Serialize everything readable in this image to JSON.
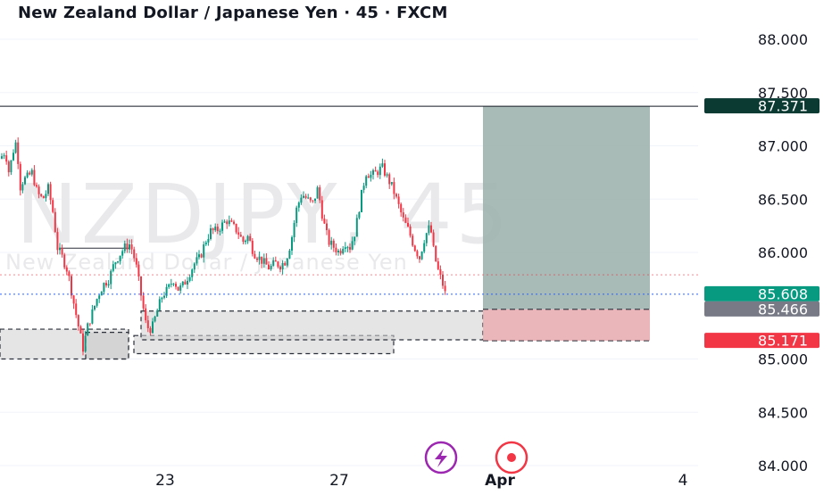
{
  "header": {
    "title": "New Zealand Dollar / Japanese Yen · 45 · FXCM"
  },
  "watermark": {
    "symbol": "NZDJPY, 45",
    "name": "New Zealand Dollar / Japanese Yen"
  },
  "colors": {
    "up": "#089981",
    "down": "#f23645",
    "target_zone": "#9fb4ae",
    "stop_zone": "#e8a9ad",
    "demand_zone": "#cfcfcf",
    "target_badge": "#0b3a33",
    "stop_badge": "#f23645",
    "last_badge": "#089981",
    "mid_badge": "#787b86"
  },
  "chart_data": {
    "type": "candlestick",
    "title": "New Zealand Dollar / Japanese Yen · 45 · FXCM",
    "ylim": [
      84.0,
      88.0
    ],
    "y_ticks": [
      "84.000",
      "84.500",
      "85.000",
      "86.000",
      "86.500",
      "87.000",
      "87.500",
      "88.000"
    ],
    "x_ticks": [
      "23",
      "27",
      "Apr",
      "4"
    ],
    "price_path": [
      [
        0,
        86.88
      ],
      [
        6,
        86.95
      ],
      [
        10,
        86.75
      ],
      [
        16,
        87.0
      ],
      [
        19,
        87.05
      ],
      [
        22,
        86.6
      ],
      [
        26,
        86.68
      ],
      [
        30,
        86.7
      ],
      [
        36,
        86.75
      ],
      [
        42,
        86.55
      ],
      [
        48,
        86.5
      ],
      [
        54,
        86.6
      ],
      [
        60,
        86.35
      ],
      [
        64,
        86.05
      ],
      [
        70,
        85.95
      ],
      [
        76,
        85.82
      ],
      [
        82,
        85.55
      ],
      [
        88,
        85.3
      ],
      [
        93,
        85.1
      ],
      [
        98,
        85.3
      ],
      [
        104,
        85.45
      ],
      [
        110,
        85.6
      ],
      [
        116,
        85.7
      ],
      [
        122,
        85.75
      ],
      [
        128,
        85.9
      ],
      [
        134,
        85.98
      ],
      [
        140,
        86.05
      ],
      [
        146,
        86.08
      ],
      [
        152,
        85.9
      ],
      [
        158,
        85.6
      ],
      [
        164,
        85.3
      ],
      [
        170,
        85.28
      ],
      [
        176,
        85.45
      ],
      [
        182,
        85.6
      ],
      [
        188,
        85.65
      ],
      [
        194,
        85.75
      ],
      [
        200,
        85.65
      ],
      [
        206,
        85.7
      ],
      [
        212,
        85.8
      ],
      [
        218,
        85.9
      ],
      [
        224,
        85.95
      ],
      [
        230,
        86.1
      ],
      [
        236,
        86.2
      ],
      [
        242,
        86.2
      ],
      [
        248,
        86.25
      ],
      [
        254,
        86.3
      ],
      [
        260,
        86.25
      ],
      [
        266,
        86.2
      ],
      [
        272,
        86.1
      ],
      [
        278,
        86.15
      ],
      [
        284,
        86.0
      ],
      [
        290,
        85.95
      ],
      [
        296,
        85.9
      ],
      [
        302,
        85.85
      ],
      [
        308,
        85.9
      ],
      [
        314,
        85.88
      ],
      [
        320,
        85.92
      ],
      [
        326,
        86.1
      ],
      [
        332,
        86.4
      ],
      [
        338,
        86.55
      ],
      [
        344,
        86.5
      ],
      [
        350,
        86.45
      ],
      [
        356,
        86.6
      ],
      [
        362,
        86.3
      ],
      [
        368,
        86.1
      ],
      [
        374,
        86.05
      ],
      [
        380,
        86.0
      ],
      [
        386,
        86.1
      ],
      [
        392,
        86.05
      ],
      [
        398,
        86.2
      ],
      [
        404,
        86.5
      ],
      [
        410,
        86.75
      ],
      [
        416,
        86.72
      ],
      [
        422,
        86.75
      ],
      [
        428,
        86.8
      ],
      [
        434,
        86.7
      ],
      [
        440,
        86.6
      ],
      [
        446,
        86.45
      ],
      [
        452,
        86.3
      ],
      [
        458,
        86.2
      ],
      [
        464,
        86.05
      ],
      [
        470,
        85.95
      ],
      [
        476,
        86.15
      ],
      [
        482,
        86.25
      ],
      [
        486,
        86.0
      ],
      [
        490,
        85.85
      ],
      [
        494,
        85.75
      ],
      [
        498,
        85.65
      ],
      [
        501,
        85.47
      ]
    ],
    "horizontal_levels": [
      {
        "value": 87.371,
        "label": "87.371",
        "role": "target"
      },
      {
        "value": 85.608,
        "label": "85.608",
        "role": "last_price"
      },
      {
        "value": 85.466,
        "label": "85.466",
        "role": "entry"
      },
      {
        "value": 85.171,
        "label": "85.171",
        "role": "stop"
      }
    ],
    "position": {
      "side": "long",
      "entry": 85.466,
      "target": 87.371,
      "stop": 85.171
    },
    "demand_zones": [
      {
        "from": 85.0,
        "to": 85.28
      },
      {
        "from": 85.0,
        "to": 85.25
      },
      {
        "from": 85.05,
        "to": 85.22
      },
      {
        "from": 85.18,
        "to": 85.45
      }
    ],
    "grid": true,
    "legend": "none"
  }
}
